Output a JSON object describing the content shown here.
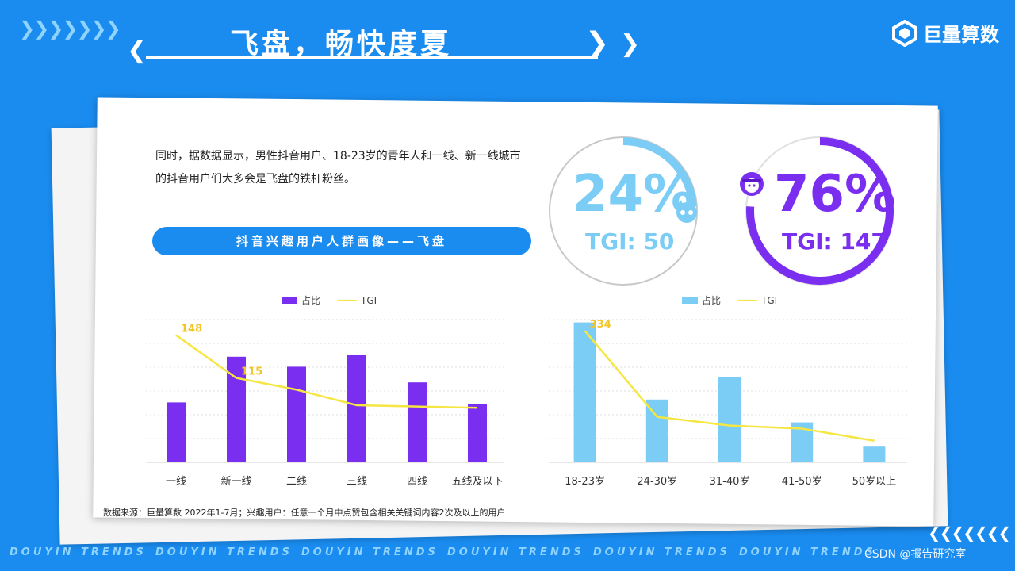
{
  "header": {
    "chevrons_left": "❯❯❯❯❯❯❯",
    "title": "飞盘，畅快度夏",
    "logo_text": "巨量算数"
  },
  "intro": "同时，据数据显示，男性抖音用户、18-23岁的青年人和一线、新一线城市的抖音用户们大多会是飞盘的铁杆粉丝。",
  "section_pill": "抖音兴趣用户人群画像——飞盘",
  "gender": {
    "male": {
      "percent": "24%",
      "tgi": "TGI: 50",
      "share": 0.24,
      "color": "#7ccdf5",
      "icon": "male-user-icon"
    },
    "female": {
      "percent": "76%",
      "tgi": "TGI: 147",
      "share": 0.76,
      "color": "#7a2ef0",
      "icon": "female-user-icon"
    }
  },
  "chart_data": [
    {
      "type": "bar",
      "categories": [
        "一线",
        "新一线",
        "二线",
        "三线",
        "四线",
        "五线及以下"
      ],
      "series": [
        {
          "name": "占比",
          "kind": "bar",
          "color": "#7a2ef0",
          "values": [
            0.42,
            0.74,
            0.67,
            0.75,
            0.56,
            0.41
          ]
        },
        {
          "name": "TGI",
          "kind": "line",
          "color": "#f5e642",
          "values": [
            148,
            115,
            106,
            94,
            93,
            92
          ]
        }
      ],
      "data_labels": [
        {
          "series": "TGI",
          "index": 0,
          "text": "148"
        },
        {
          "series": "TGI",
          "index": 1,
          "text": "115"
        }
      ],
      "bar_ylim": [
        0,
        1
      ],
      "line_ylim": [
        50,
        160
      ],
      "grid": true,
      "legend": "top-center"
    },
    {
      "type": "bar",
      "categories": [
        "18-23岁",
        "24-30岁",
        "31-40岁",
        "41-50岁",
        "50岁以上"
      ],
      "series": [
        {
          "name": "占比",
          "kind": "bar",
          "color": "#7ccdf5",
          "values": [
            0.98,
            0.44,
            0.6,
            0.28,
            0.11
          ]
        },
        {
          "name": "TGI",
          "kind": "line",
          "color": "#f5e642",
          "values": [
            334,
            135,
            115,
            108,
            80
          ]
        }
      ],
      "data_labels": [
        {
          "series": "TGI",
          "index": 0,
          "text": "334"
        }
      ],
      "bar_ylim": [
        0,
        1
      ],
      "line_ylim": [
        30,
        360
      ],
      "grid": true,
      "legend": "top-center"
    }
  ],
  "footnote": "数据来源：巨量算数 2022年1-7月；兴趣用户：任意一个月中点赞包含相关关键词内容2次及以上的用户",
  "footer": {
    "trend_text": "DOUYIN TRENDS",
    "chevrons_right": "❮❮❮❮❮❮❮",
    "watermark": "CSDN @报告研究室"
  }
}
